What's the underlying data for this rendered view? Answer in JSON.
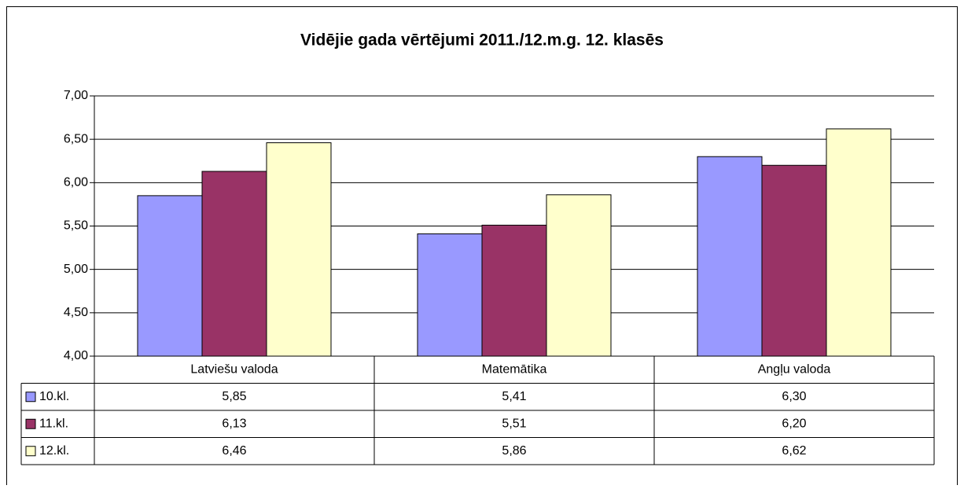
{
  "chart_data": {
    "type": "bar",
    "title": "Vidējie gada vērtējumi 2011./12.m.g. 12. klasēs",
    "categories": [
      "Latviešu valoda",
      "Matemātika",
      "Angļu valoda"
    ],
    "series": [
      {
        "name": "10.kl.",
        "color": "#9999ff",
        "values": [
          5.85,
          5.41,
          6.3
        ],
        "value_labels": [
          "5,85",
          "5,41",
          "6,30"
        ]
      },
      {
        "name": "11.kl.",
        "color": "#993366",
        "values": [
          6.13,
          5.51,
          6.2
        ],
        "value_labels": [
          "6,13",
          "5,51",
          "6,20"
        ]
      },
      {
        "name": "12.kl.",
        "color": "#ffffcc",
        "values": [
          6.46,
          5.86,
          6.62
        ],
        "value_labels": [
          "6,46",
          "5,86",
          "6,62"
        ]
      }
    ],
    "ylim": [
      4,
      7
    ],
    "yticks": [
      {
        "value": 4,
        "label": "4,00"
      },
      {
        "value": 4.5,
        "label": "4,50"
      },
      {
        "value": 5,
        "label": "5,00"
      },
      {
        "value": 5.5,
        "label": "5,50"
      },
      {
        "value": 6,
        "label": "6,00"
      },
      {
        "value": 6.5,
        "label": "6,50"
      },
      {
        "value": 7,
        "label": "7,00"
      }
    ],
    "grid": true
  }
}
